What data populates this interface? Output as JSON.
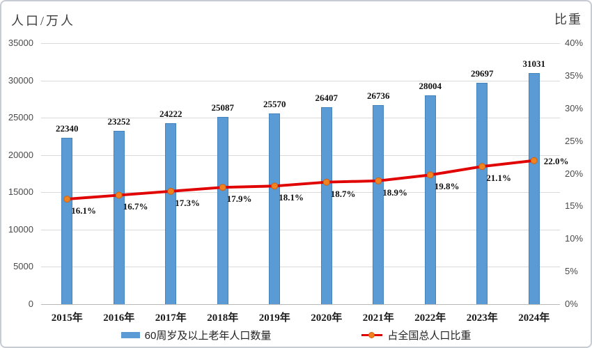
{
  "chart_data": {
    "type": "combo-bar-line",
    "categories": [
      "2015年",
      "2016年",
      "2017年",
      "2018年",
      "2019年",
      "2020年",
      "2021年",
      "2022年",
      "2023年",
      "2024年"
    ],
    "series": [
      {
        "name": "60周岁及以上老年人口数量",
        "type": "bar",
        "axis": "left",
        "color": "#5b9bd5",
        "values": [
          22340,
          23252,
          24222,
          25087,
          25570,
          26407,
          26736,
          28004,
          29697,
          31031
        ],
        "data_labels": [
          "22340",
          "23252",
          "24222",
          "25087",
          "25570",
          "26407",
          "26736",
          "28004",
          "29697",
          "31031"
        ]
      },
      {
        "name": "占全国总人口比重",
        "type": "line",
        "axis": "right",
        "color": "#e00000",
        "marker_color": "#f08321",
        "values": [
          16.1,
          16.7,
          17.3,
          17.9,
          18.1,
          18.7,
          18.9,
          19.8,
          21.1,
          22.0
        ],
        "data_labels": [
          "16.1%",
          "16.7%",
          "17.3%",
          "17.9%",
          "18.1%",
          "18.7%",
          "18.9%",
          "19.8%",
          "21.1%",
          "22.0%"
        ]
      }
    ],
    "left_axis": {
      "title": "人口/万人",
      "min": 0,
      "max": 35000,
      "step": 5000,
      "tick_labels": [
        "0",
        "5000",
        "10000",
        "15000",
        "20000",
        "25000",
        "30000",
        "35000"
      ]
    },
    "right_axis": {
      "title": "比重",
      "min": 0,
      "max": 40,
      "step": 5,
      "tick_labels": [
        "0%",
        "5%",
        "10%",
        "15%",
        "20%",
        "25%",
        "30%",
        "35%",
        "40%"
      ]
    },
    "grid": "horizontal",
    "legend_position": "bottom"
  }
}
